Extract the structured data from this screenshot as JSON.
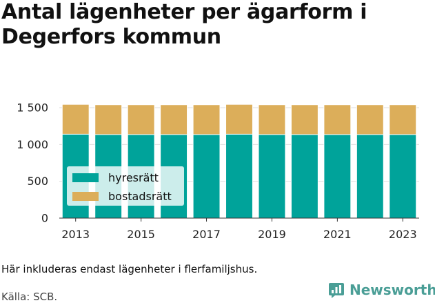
{
  "title": "Antal lägenheter per ägarform i Degerfors kommun",
  "note": "Här inkluderas endast lägenheter i flerfamiljshus.",
  "source": "Källa: SCB.",
  "brand": {
    "name": "Newsworthy",
    "icon": "bar-chart-logo-icon",
    "color": "#4a9e96"
  },
  "chart_data": {
    "type": "bar",
    "stacked": true,
    "categories": [
      "2013",
      "2014",
      "2015",
      "2016",
      "2017",
      "2018",
      "2019",
      "2020",
      "2021",
      "2022",
      "2023"
    ],
    "x_tick_labels": [
      "2013",
      "2015",
      "2017",
      "2019",
      "2021",
      "2023"
    ],
    "series": [
      {
        "name": "hyresrätt",
        "color": "#00a39a",
        "values": [
          1140,
          1135,
          1135,
          1135,
          1135,
          1140,
          1135,
          1135,
          1135,
          1135,
          1135
        ]
      },
      {
        "name": "bostadsrätt",
        "color": "#dcae5a",
        "values": [
          405,
          405,
          405,
          405,
          405,
          405,
          405,
          405,
          405,
          405,
          405
        ]
      }
    ],
    "ylim": [
      0,
      1500
    ],
    "y_ticks": [
      0,
      500,
      1000,
      1500
    ],
    "y_tick_labels": [
      "0",
      "500",
      "1 000",
      "1 500"
    ],
    "grid": true,
    "legend_position": "bottom-left"
  }
}
